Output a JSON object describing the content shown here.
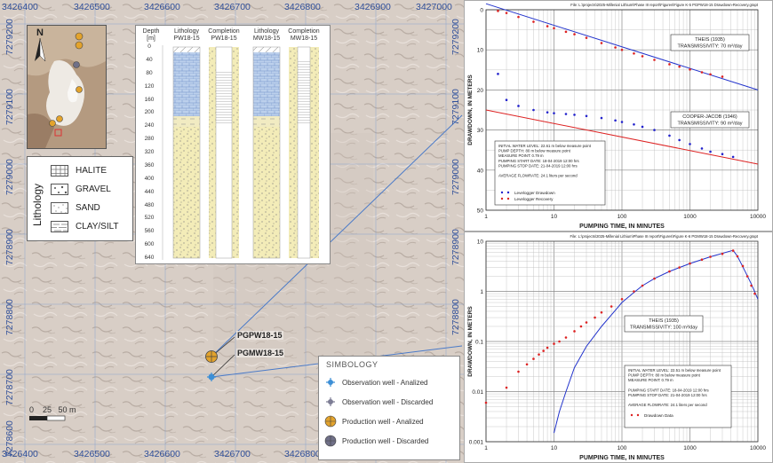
{
  "map": {
    "x_coords": [
      "3426400",
      "3426500",
      "3426600",
      "3426700",
      "3426800",
      "3426900",
      "3427000"
    ],
    "y_coords": [
      "7279200",
      "7279100",
      "7279000",
      "7278900",
      "7278800",
      "7278700",
      "7278600"
    ],
    "north_label": "N",
    "scale_label": "0    25   50 m",
    "well_labels": [
      "PGPW18-15",
      "PGMW18-15"
    ]
  },
  "lithology_legend": {
    "title": "Lithology",
    "items": [
      "HALITE",
      "GRAVEL",
      "SAND",
      "CLAY/SILT"
    ]
  },
  "logs": {
    "depth_header": "Depth [m]",
    "columns": [
      {
        "title1": "Lithology",
        "title2": "PW18-15"
      },
      {
        "title1": "Completion",
        "title2": "PW18-15"
      },
      {
        "title1": "Lithology",
        "title2": "MW18-15"
      },
      {
        "title1": "Completion",
        "title2": "MW18-15"
      }
    ],
    "depths": [
      "0",
      "40",
      "80",
      "120",
      "160",
      "200",
      "240",
      "280",
      "320",
      "360",
      "400",
      "440",
      "480",
      "520",
      "560",
      "600",
      "640"
    ]
  },
  "symbology": {
    "title": "SIMBOLOGY",
    "items": [
      {
        "label": "Observation well - Analized",
        "color": "#3d8fd6"
      },
      {
        "label": "Observation well - Discarded",
        "color": "#7d7d95"
      },
      {
        "label": "Production well - Analized",
        "color": "#e3a32c"
      },
      {
        "label": "Production well - Discarded",
        "color": "#707088"
      }
    ]
  },
  "chart_data": [
    {
      "type": "scatter",
      "file_label": "File: L:\\projects\\2025-Millenial Lithium\\Phase III report\\Figures\\Figure K-5 PGPW18-15 Drawdown-Recovery.grapt",
      "xlabel": "PUMPING TIME, IN MINUTES",
      "ylabel": "DRAWDOWN, IN METERS",
      "xscale": "log",
      "xlim": [
        1,
        10000
      ],
      "ylim": [
        50,
        0
      ],
      "x_ticks": [
        "1",
        "10",
        "100",
        "1000",
        "10000"
      ],
      "y_ticks": [
        "0",
        "10",
        "20",
        "30",
        "40",
        "50"
      ],
      "annotations": [
        {
          "text1": "THEIS (1935)",
          "text2": "TRANSMISSIVITY: 70 m²/day"
        },
        {
          "text1": "COOPER-JACOB (1946)",
          "text2": "TRANSMISSIVITY: 90 m²/day"
        }
      ],
      "info": [
        "INITIAL WATER LEVEL: 22.61 m below measure point",
        "PUMP DEPTH: 80 m below measure point",
        "MEASURE POINT: 0.79 m",
        "PUMPING START DATE: 18-04-2019 12:00 hrs",
        "PUMPING STOP DATE: 21-04-2019 12:00 hrs",
        "",
        "AVERAGE FLOWRATE: 24.1 liters per second"
      ],
      "series": [
        {
          "name": "Levelogger Drawdown",
          "color": "#2222cc",
          "x": [
            1.5,
            2,
            3,
            5,
            8,
            10,
            15,
            20,
            30,
            50,
            80,
            100,
            150,
            200,
            300,
            500,
            700,
            1000,
            1500,
            2000,
            3000,
            4320
          ],
          "y": [
            16,
            22.5,
            24,
            25,
            25.6,
            25.8,
            26,
            26.2,
            26.5,
            27,
            27.6,
            28,
            28.6,
            29.2,
            30,
            31.4,
            32.5,
            33.5,
            34.6,
            35.4,
            36,
            36.7
          ]
        },
        {
          "name": "Levelogger Recovery",
          "color": "#dd2222",
          "x": [
            1.5,
            2,
            3,
            5,
            8,
            10,
            15,
            20,
            30,
            50,
            80,
            100,
            150,
            200,
            300,
            500,
            700,
            1000,
            1500,
            2000,
            3000
          ],
          "y": [
            0.3,
            0.8,
            1.8,
            3,
            4.1,
            4.6,
            5.5,
            6.1,
            7,
            8.3,
            9.4,
            10,
            10.9,
            11.6,
            12.5,
            13.6,
            14.2,
            14.9,
            15.6,
            16.1,
            16.7
          ]
        }
      ],
      "fits": [
        {
          "name": "Theis",
          "color": "#2233cc",
          "x": [
            1,
            10000
          ],
          "y": [
            -1.5,
            20
          ]
        },
        {
          "name": "Cooper-Jacob",
          "color": "#dd2222",
          "x": [
            1,
            10000
          ],
          "y": [
            25,
            38.5
          ]
        }
      ]
    },
    {
      "type": "scatter",
      "file_label": "File: L:\\projects\\2025-Millenial Lithium\\Phase III report\\Figures\\Figure K-6 PGMW18-15 Drawdown-Recovery.grapt",
      "xlabel": "PUMPING TIME, IN MINUTES",
      "ylabel": "DRAWDOWN, IN METERS",
      "xscale": "log",
      "yscale": "log",
      "xlim": [
        1,
        10000
      ],
      "ylim": [
        0.001,
        10
      ],
      "x_ticks": [
        "1",
        "10",
        "100",
        "1000",
        "10000"
      ],
      "y_ticks": [
        "0.001",
        "0.01",
        "0.1",
        "1",
        "10"
      ],
      "annotations": [
        {
          "text1": "THEIS (1935)",
          "text2": "TRANSMISSIVITY: 100 m²/day"
        }
      ],
      "info": [
        "INITIAL WATER LEVEL: 22.51 m below measure point",
        "PUMP DEPTH: 80 m below measure point",
        "MEASURE POINT: 0.79 m",
        "",
        "PUMPING START DATE: 18-04-2019 12:00 hrs",
        "PUMPING STOP DATE: 21-04-2019 12:00 hrs",
        "",
        "AVERAGE FLOWRATE: 24.1 liters per second"
      ],
      "series": [
        {
          "name": "Drawdown Data",
          "color": "#dd2222",
          "x": [
            1,
            2,
            3,
            4,
            5,
            6,
            7,
            8,
            10,
            12,
            15,
            20,
            25,
            30,
            40,
            50,
            70,
            100,
            150,
            200,
            300,
            500,
            700,
            1000,
            1500,
            2000,
            3000,
            4320,
            5000,
            6000,
            7000,
            8000,
            9000
          ],
          "y": [
            0.006,
            0.012,
            0.025,
            0.035,
            0.045,
            0.055,
            0.065,
            0.075,
            0.09,
            0.1,
            0.12,
            0.16,
            0.2,
            0.24,
            0.3,
            0.38,
            0.5,
            0.7,
            1.0,
            1.3,
            1.8,
            2.5,
            3.0,
            3.6,
            4.3,
            4.9,
            5.6,
            6.5,
            5.0,
            3.2,
            2.0,
            1.3,
            0.9
          ]
        }
      ],
      "fits": [
        {
          "name": "Theis",
          "color": "#2233cc",
          "x": [
            10,
            12,
            15,
            20,
            30,
            50,
            80,
            100,
            150,
            200,
            300,
            500,
            1000,
            2000,
            4320,
            5000,
            6000,
            8000,
            10000
          ],
          "y": [
            0.0015,
            0.004,
            0.01,
            0.03,
            0.08,
            0.2,
            0.42,
            0.6,
            0.95,
            1.3,
            1.8,
            2.5,
            3.6,
            4.9,
            6.6,
            5.0,
            3.1,
            1.4,
            0.7
          ]
        }
      ]
    }
  ]
}
